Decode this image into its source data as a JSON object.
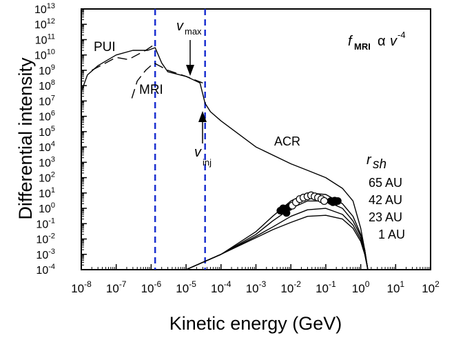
{
  "chart_data": {
    "type": "line",
    "title": "",
    "xlabel": "Kinetic energy (GeV)",
    "ylabel": "Differential intensity",
    "xscale": "log",
    "yscale": "log",
    "xlim_exp": [
      -8,
      2
    ],
    "ylim_exp": [
      -4,
      13
    ],
    "x_ticks_exp": [
      -8,
      -7,
      -6,
      -5,
      -4,
      -3,
      -2,
      -1,
      0,
      1,
      2
    ],
    "y_ticks_exp": [
      -4,
      -3,
      -2,
      -1,
      0,
      1,
      2,
      3,
      4,
      5,
      6,
      7,
      8,
      9,
      10,
      11,
      12,
      13
    ],
    "grid": false,
    "vertical_lines": [
      {
        "x": 1.3e-06,
        "style": "dashed",
        "color": "#1a2fd0"
      },
      {
        "x": 3.5e-05,
        "style": "dashed",
        "color": "#1a2fd0"
      }
    ],
    "annotations": {
      "pui": "PUI",
      "mri": "MRI",
      "acr": "ACR",
      "vmax_base": "v",
      "vmax_sub": "max",
      "vinj_base": "v",
      "vinj_sub": "inj",
      "formula_f": "f",
      "formula_sub": "MRI",
      "formula_alpha": "α",
      "formula_v": "v",
      "formula_exp": "-4",
      "rsh_base": "r",
      "rsh_sub": "sh",
      "rsh_values": [
        "65 AU",
        "42 AU",
        "23 AU",
        "1 AU"
      ]
    },
    "series": [
      {
        "style": "solid",
        "x": [
          1e-08,
          1.5e-08,
          3e-08,
          1e-07,
          3e-07,
          8e-07,
          1.3e-06,
          2e-06,
          3e-06,
          1e-05,
          2.5e-05,
          3.5e-05,
          5e-05,
          0.0001,
          0.001,
          0.01,
          0.03,
          0.1,
          0.3,
          0.6,
          1.0,
          1.3,
          1.6
        ],
        "y": [
          40000000.0,
          500000000.0,
          2000000000.0,
          10000000000.0,
          20000000000.0,
          20000000000.0,
          30000000000.0,
          3000000000.0,
          800000000.0,
          400000000.0,
          150000000.0,
          7000000.0,
          2000000.0,
          500000.0,
          10000.0,
          800,
          300,
          100,
          20,
          3,
          0.05,
          0.002,
          0.0001
        ]
      },
      {
        "style": "dashed",
        "x": [
          2e-08,
          1e-07,
          2.2e-07,
          7e-07,
          1.1e-06
        ],
        "y": [
          1000000000.0,
          7000000000.0,
          5000000000.0,
          20000000000.0,
          40000000000.0
        ]
      },
      {
        "style": "dashed",
        "x": [
          2.8e-07,
          4e-07,
          7e-07,
          1.2e-06,
          3e-06,
          1e-05,
          3e-05
        ],
        "y": [
          15000000.0,
          200000000.0,
          1000000000.0,
          3000000000.0,
          1000000000.0,
          400000000.0,
          150000000.0
        ]
      },
      {
        "style": "solid",
        "x": [
          1e-05,
          0.0001,
          0.001,
          0.003,
          0.01,
          0.03,
          0.1,
          0.3,
          0.6,
          1.0,
          1.3,
          1.6
        ],
        "y": [
          0.0001,
          0.001,
          0.03,
          0.3,
          3,
          10,
          8,
          2,
          0.3,
          0.02,
          0.002,
          0.0001
        ]
      },
      {
        "style": "solid",
        "x": [
          1e-05,
          0.0001,
          0.001,
          0.003,
          0.01,
          0.03,
          0.1,
          0.3,
          0.6,
          1.0,
          1.3,
          1.6
        ],
        "y": [
          0.0001,
          0.001,
          0.02,
          0.15,
          1,
          3,
          3,
          1,
          0.15,
          0.015,
          0.002,
          0.0001
        ]
      },
      {
        "style": "solid",
        "x": [
          1e-05,
          0.0001,
          0.001,
          0.003,
          0.01,
          0.03,
          0.1,
          0.3,
          0.6,
          1.0,
          1.3,
          1.6
        ],
        "y": [
          0.0001,
          0.001,
          0.015,
          0.06,
          0.3,
          0.8,
          1,
          0.4,
          0.08,
          0.01,
          0.0015,
          0.0001
        ]
      },
      {
        "style": "solid",
        "x": [
          1e-05,
          0.0001,
          0.001,
          0.003,
          0.01,
          0.03,
          0.1,
          0.3,
          0.6,
          1.0,
          1.3,
          1.6
        ],
        "y": [
          0.0001,
          0.001,
          0.012,
          0.04,
          0.12,
          0.3,
          0.35,
          0.2,
          0.05,
          0.007,
          0.001,
          0.0001
        ]
      }
    ],
    "observations": {
      "filled": [
        {
          "x": 0.005,
          "y": 0.7
        },
        {
          "x": 0.006,
          "y": 1.0
        },
        {
          "x": 0.0075,
          "y": 0.5
        },
        {
          "x": 0.009,
          "y": 1.2
        },
        {
          "x": 0.14,
          "y": 3.0
        },
        {
          "x": 0.16,
          "y": 2.5
        },
        {
          "x": 0.18,
          "y": 3.2
        },
        {
          "x": 0.2,
          "y": 2.8
        },
        {
          "x": 0.22,
          "y": 3.0
        }
      ],
      "open": [
        {
          "x": 0.011,
          "y": 1.5
        },
        {
          "x": 0.014,
          "y": 2.5
        },
        {
          "x": 0.018,
          "y": 4
        },
        {
          "x": 0.023,
          "y": 5
        },
        {
          "x": 0.03,
          "y": 6
        },
        {
          "x": 0.038,
          "y": 7
        },
        {
          "x": 0.048,
          "y": 6
        },
        {
          "x": 0.06,
          "y": 5
        },
        {
          "x": 0.075,
          "y": 4
        },
        {
          "x": 0.09,
          "y": 3
        }
      ]
    }
  }
}
